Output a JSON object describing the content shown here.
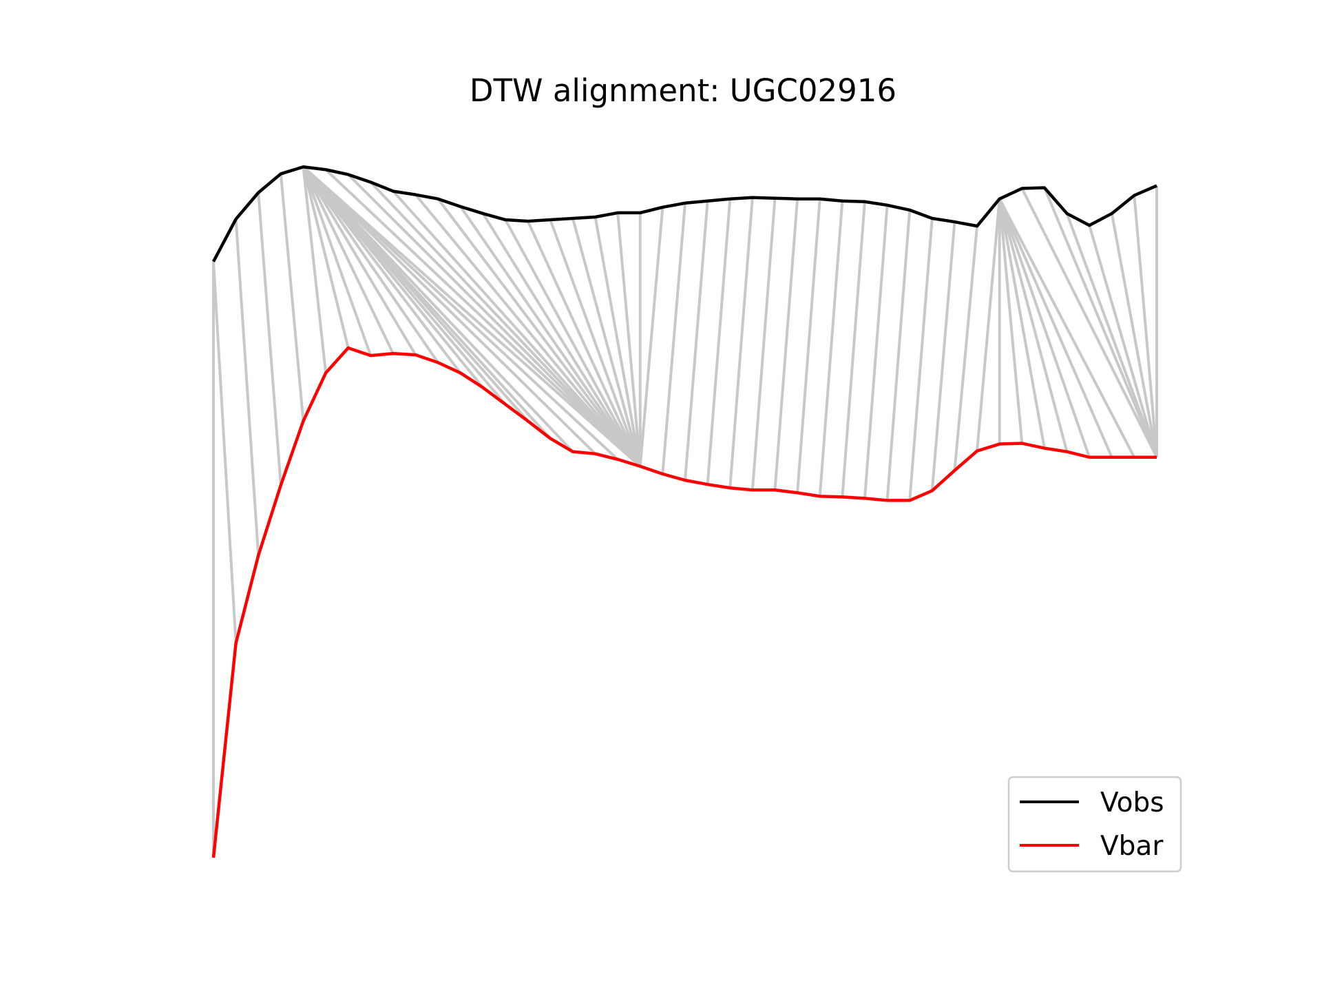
{
  "chart_data": {
    "type": "line",
    "title": "DTW alignment: UGC02916",
    "xlabel": "",
    "ylabel": "",
    "axes_visible": false,
    "grid": false,
    "legend_position": "lower-right",
    "x": [
      0,
      1,
      2,
      3,
      4,
      5,
      6,
      7,
      8,
      9,
      10,
      11,
      12,
      13,
      14,
      15,
      16,
      17,
      18,
      19,
      20,
      21,
      22,
      23,
      24,
      25,
      26,
      27,
      28,
      29,
      30,
      31,
      32,
      33,
      34,
      35,
      36,
      37,
      38,
      39,
      40,
      41,
      42
    ],
    "xlim": [
      0,
      42
    ],
    "ylim": [
      0,
      1.012
    ],
    "series": [
      {
        "name": "Vobs",
        "color": "#000000",
        "values": [
          0.856,
          0.917,
          0.955,
          0.982,
          0.992,
          0.988,
          0.981,
          0.97,
          0.957,
          0.952,
          0.946,
          0.935,
          0.925,
          0.916,
          0.914,
          0.916,
          0.918,
          0.92,
          0.926,
          0.926,
          0.934,
          0.94,
          0.943,
          0.946,
          0.948,
          0.947,
          0.946,
          0.946,
          0.943,
          0.942,
          0.937,
          0.93,
          0.918,
          0.913,
          0.907,
          0.946,
          0.961,
          0.962,
          0.925,
          0.908,
          0.925,
          0.951,
          0.965
        ]
      },
      {
        "name": "Vbar",
        "color": "#ff0000",
        "values": [
          0.0,
          0.308,
          0.434,
          0.535,
          0.627,
          0.696,
          0.732,
          0.721,
          0.724,
          0.722,
          0.711,
          0.696,
          0.675,
          0.651,
          0.627,
          0.602,
          0.583,
          0.58,
          0.572,
          0.562,
          0.551,
          0.542,
          0.536,
          0.531,
          0.528,
          0.528,
          0.524,
          0.519,
          0.518,
          0.516,
          0.513,
          0.513,
          0.527,
          0.556,
          0.584,
          0.594,
          0.595,
          0.588,
          0.583,
          0.575,
          0.575,
          0.575,
          0.575
        ]
      }
    ],
    "alignment_path": [
      [
        0,
        0
      ],
      [
        0,
        1
      ],
      [
        1,
        2
      ],
      [
        2,
        3
      ],
      [
        3,
        4
      ],
      [
        4,
        5
      ],
      [
        4,
        6
      ],
      [
        4,
        7
      ],
      [
        4,
        8
      ],
      [
        4,
        9
      ],
      [
        4,
        10
      ],
      [
        4,
        11
      ],
      [
        4,
        12
      ],
      [
        4,
        13
      ],
      [
        4,
        14
      ],
      [
        4,
        15
      ],
      [
        4,
        16
      ],
      [
        4,
        17
      ],
      [
        4,
        18
      ],
      [
        4,
        19
      ],
      [
        5,
        19
      ],
      [
        6,
        19
      ],
      [
        7,
        19
      ],
      [
        8,
        19
      ],
      [
        9,
        19
      ],
      [
        10,
        19
      ],
      [
        11,
        19
      ],
      [
        12,
        19
      ],
      [
        13,
        19
      ],
      [
        14,
        19
      ],
      [
        15,
        19
      ],
      [
        16,
        19
      ],
      [
        17,
        19
      ],
      [
        18,
        19
      ],
      [
        19,
        19
      ],
      [
        20,
        19
      ],
      [
        21,
        20
      ],
      [
        22,
        21
      ],
      [
        23,
        22
      ],
      [
        24,
        23
      ],
      [
        25,
        24
      ],
      [
        26,
        25
      ],
      [
        27,
        26
      ],
      [
        28,
        27
      ],
      [
        29,
        28
      ],
      [
        30,
        29
      ],
      [
        31,
        30
      ],
      [
        32,
        31
      ],
      [
        33,
        32
      ],
      [
        34,
        33
      ],
      [
        35,
        34
      ],
      [
        35,
        35
      ],
      [
        35,
        36
      ],
      [
        35,
        37
      ],
      [
        35,
        38
      ],
      [
        35,
        39
      ],
      [
        35,
        40
      ],
      [
        35,
        41
      ],
      [
        36,
        42
      ],
      [
        37,
        42
      ],
      [
        38,
        42
      ],
      [
        39,
        42
      ],
      [
        40,
        42
      ],
      [
        41,
        42
      ],
      [
        42,
        42
      ]
    ],
    "alignment_color": "#c8c8c8"
  }
}
